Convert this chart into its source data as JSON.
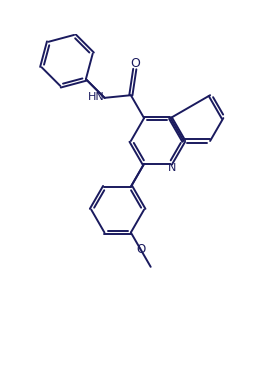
{
  "bg_color": "#ffffff",
  "line_color": "#1a1a5e",
  "line_width": 1.4,
  "figsize": [
    2.67,
    3.85
  ],
  "dpi": 100,
  "xlim": [
    -1.5,
    8.5
  ],
  "ylim": [
    -1.0,
    11.0
  ]
}
